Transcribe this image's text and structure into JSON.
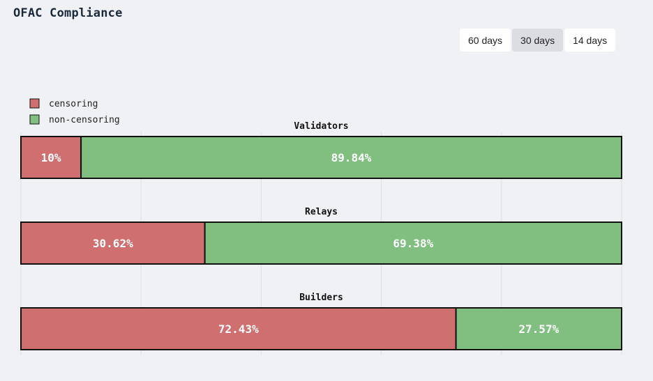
{
  "page": {
    "title": "OFAC Compliance"
  },
  "range": {
    "options": [
      "60 days",
      "30 days",
      "14 days"
    ],
    "selected": "30 days"
  },
  "colors": {
    "censoring": "#cf6f6f",
    "non_censoring": "#81bf81",
    "outline": "#111111",
    "grid": "#dedfe4"
  },
  "chart_data": {
    "type": "bar",
    "orientation": "horizontal-stacked-100",
    "legend": [
      "censoring",
      "non-censoring"
    ],
    "legend_position": "top-left",
    "xlim": [
      0,
      100
    ],
    "grid": "vertical",
    "bars": [
      {
        "name": "Validators",
        "censoring": 10,
        "non_censoring": 89.84,
        "censoring_label": "10%",
        "non_censoring_label": "89.84%"
      },
      {
        "name": "Relays",
        "censoring": 30.62,
        "non_censoring": 69.38,
        "censoring_label": "30.62%",
        "non_censoring_label": "69.38%"
      },
      {
        "name": "Builders",
        "censoring": 72.43,
        "non_censoring": 27.57,
        "censoring_label": "72.43%",
        "non_censoring_label": "27.57%"
      }
    ]
  }
}
